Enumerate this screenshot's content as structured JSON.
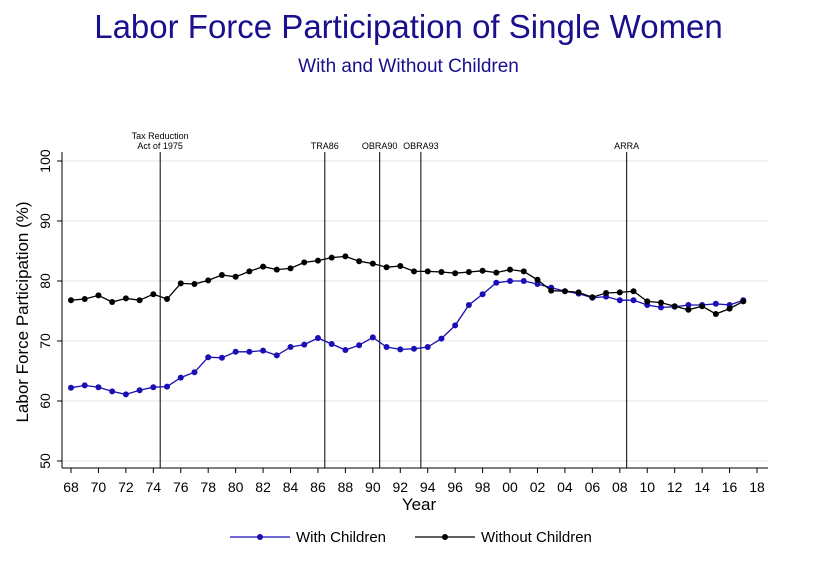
{
  "chart_data": {
    "type": "line",
    "title": "Labor Force Participation of Single Women",
    "subtitle": "With and Without Children",
    "xlabel": "Year",
    "ylabel": "Labor Force Participation (%)",
    "ylim": [
      50,
      100
    ],
    "yticks": [
      50,
      60,
      70,
      80,
      90,
      100
    ],
    "xlim": [
      1968,
      2018
    ],
    "xtick_labels": [
      "68",
      "70",
      "72",
      "74",
      "76",
      "78",
      "80",
      "82",
      "84",
      "86",
      "88",
      "90",
      "92",
      "94",
      "96",
      "98",
      "00",
      "02",
      "04",
      "06",
      "08",
      "10",
      "12",
      "14",
      "16",
      "18"
    ],
    "x": [
      1968,
      1969,
      1970,
      1971,
      1972,
      1973,
      1974,
      1975,
      1976,
      1977,
      1978,
      1979,
      1980,
      1981,
      1982,
      1983,
      1984,
      1985,
      1986,
      1987,
      1988,
      1989,
      1990,
      1991,
      1992,
      1993,
      1994,
      1995,
      1996,
      1997,
      1998,
      1999,
      2000,
      2001,
      2002,
      2003,
      2004,
      2005,
      2006,
      2007,
      2008,
      2009,
      2010,
      2011,
      2012,
      2013,
      2014,
      2015,
      2016,
      2017
    ],
    "series": [
      {
        "name": "With Children",
        "color": "#1a0fb4",
        "values": [
          62.2,
          62.6,
          62.3,
          61.6,
          61.1,
          61.8,
          62.3,
          62.4,
          63.9,
          64.8,
          67.3,
          67.2,
          68.2,
          68.2,
          68.4,
          67.6,
          69.0,
          69.4,
          70.5,
          69.5,
          68.5,
          69.3,
          70.6,
          69.0,
          68.6,
          68.7,
          69.0,
          70.4,
          72.6,
          76.0,
          77.8,
          79.7,
          80.0,
          80.0,
          79.5,
          78.9,
          78.3,
          77.9,
          77.2,
          77.4,
          76.8,
          76.8,
          76.0,
          75.6,
          75.7,
          76.0,
          76.0,
          76.2,
          76.0,
          76.8
        ]
      },
      {
        "name": "Without Children",
        "color": "#000000",
        "values": [
          76.8,
          77.0,
          77.6,
          76.5,
          77.1,
          76.8,
          77.8,
          77.0,
          79.6,
          79.5,
          80.1,
          81.0,
          80.7,
          81.6,
          82.4,
          81.9,
          82.1,
          83.1,
          83.4,
          83.9,
          84.1,
          83.3,
          82.9,
          82.3,
          82.5,
          81.6,
          81.6,
          81.5,
          81.3,
          81.5,
          81.7,
          81.4,
          81.9,
          81.6,
          80.2,
          78.4,
          78.3,
          78.1,
          77.3,
          78.0,
          78.1,
          78.3,
          76.6,
          76.4,
          75.8,
          75.2,
          75.8,
          74.5,
          75.4,
          76.6
        ]
      }
    ],
    "events": [
      {
        "x": 1974.5,
        "label_lines": [
          "Tax Reduction",
          "Act of 1975"
        ]
      },
      {
        "x": 1986.5,
        "label_lines": [
          "TRA86"
        ]
      },
      {
        "x": 1990.5,
        "label_lines": [
          "OBRA90"
        ]
      },
      {
        "x": 1993.5,
        "label_lines": [
          "OBRA93"
        ]
      },
      {
        "x": 2008.5,
        "label_lines": [
          "ARRA"
        ]
      }
    ],
    "grid": true,
    "legend_position": "bottom"
  }
}
